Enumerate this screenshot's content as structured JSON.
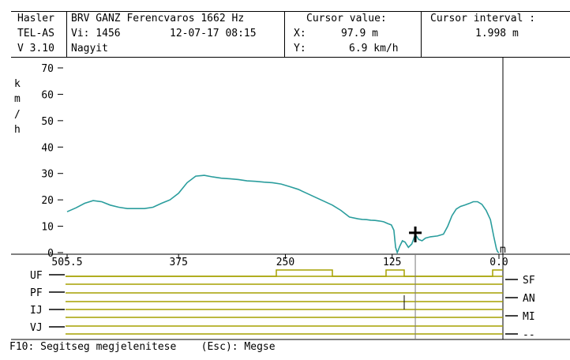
{
  "header": {
    "left": [
      "Hasler",
      "TEL-AS",
      "V 3.10"
    ],
    "info": [
      "BRV GANZ Ferencvaros 1662 Hz",
      "Vi: 1456",
      "Nagyit"
    ],
    "datetime": "12-07-17 08:15",
    "cursor_title": "Cursor value:",
    "cursor_x_label": "X:",
    "cursor_x_value": "97.9 m",
    "cursor_y_label": "Y:",
    "cursor_y_value": "6.9 km/h",
    "interval_title": "Cursor interval :",
    "interval_value": "1.998 m"
  },
  "footer": {
    "help": "F10: Segitseg megjelenitese",
    "esc": "(Esc): Megse"
  },
  "colors": {
    "speed_line": "#2a9d9d",
    "signal_line": "#a6a100",
    "cursor": "#7a7a7a"
  },
  "chart_data": {
    "type": "line",
    "ylabel": "km/h",
    "xlabel_unit": "m",
    "xlim": [
      505.5,
      0.0
    ],
    "ylim": [
      0,
      70
    ],
    "yticks": [
      0,
      10,
      20,
      30,
      40,
      50,
      60,
      70
    ],
    "xtick_labels": [
      "505.5",
      "375",
      "250",
      "125",
      "0.0"
    ],
    "xtick_values": [
      505.5,
      375,
      250,
      125,
      0
    ],
    "series": [
      {
        "x": [
          505.5,
          495,
          485,
          475,
          465,
          455,
          445,
          435,
          425,
          415,
          405,
          395,
          385,
          375,
          365,
          355,
          345,
          335,
          325,
          315,
          305,
          295,
          285,
          275,
          265,
          255,
          245,
          235,
          225,
          215,
          205,
          195,
          185,
          175,
          165,
          160,
          155,
          150,
          145,
          140,
          135,
          130,
          126,
          123,
          121,
          119,
          116,
          113,
          110,
          106,
          102,
          97.9,
          94,
          90,
          86,
          80,
          72,
          65,
          60,
          55,
          50,
          45,
          40,
          35,
          30,
          25,
          20,
          15,
          10,
          6,
          3,
          1.5,
          0
        ],
        "y": [
          15.5,
          17.0,
          18.7,
          19.7,
          19.3,
          18.0,
          17.2,
          16.7,
          16.7,
          16.7,
          17.2,
          18.7,
          20.0,
          22.5,
          26.5,
          29.0,
          29.3,
          28.7,
          28.2,
          28.0,
          27.7,
          27.2,
          27.0,
          26.7,
          26.5,
          26.0,
          25.0,
          24.0,
          22.5,
          21.0,
          19.5,
          18.0,
          16.0,
          13.5,
          12.8,
          12.6,
          12.5,
          12.3,
          12.2,
          12.0,
          11.7,
          11.0,
          10.5,
          8.5,
          2.0,
          0.0,
          2.5,
          4.5,
          4.0,
          2.0,
          3.3,
          6.9,
          5.0,
          4.5,
          5.5,
          6.0,
          6.3,
          7.0,
          10.0,
          14.0,
          16.5,
          17.5,
          18.0,
          18.6,
          19.3,
          19.3,
          18.3,
          16.0,
          12.5,
          6.0,
          1.5,
          0.3,
          0.0
        ]
      }
    ],
    "cursor_x": 97.9,
    "cursor_y": 6.9
  },
  "signals": {
    "left_labels": [
      "UF",
      "PF",
      "IJ",
      "VJ"
    ],
    "right_labels": [
      "SF",
      "AN",
      "MI",
      "--"
    ]
  }
}
